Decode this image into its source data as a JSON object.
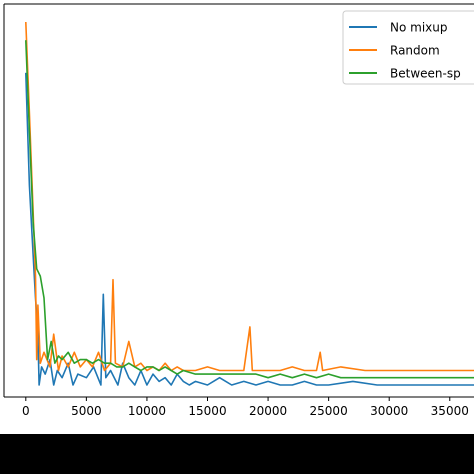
{
  "chart_data": {
    "type": "line",
    "title": "",
    "xlabel": "",
    "ylabel": "",
    "xlim": [
      -1800,
      37000
    ],
    "ylim": [
      0.0,
      1.0
    ],
    "x_ticks": [
      0,
      5000,
      10000,
      15000,
      20000,
      25000,
      30000,
      35000
    ],
    "x_tick_labels": [
      "0",
      "5000",
      "10000",
      "15000",
      "20000",
      "25000",
      "30000",
      "35000"
    ],
    "y_ticks_labeled": false,
    "grid": false,
    "legend": {
      "placement": "top-right"
    },
    "series": [
      {
        "name": "No mixup",
        "color": "#1f77b4",
        "points": [
          [
            0,
            0.86
          ],
          [
            300,
            0.55
          ],
          [
            600,
            0.36
          ],
          [
            800,
            0.24
          ],
          [
            1000,
            0.14
          ],
          [
            1100,
            0.0
          ],
          [
            1300,
            0.05
          ],
          [
            1600,
            0.03
          ],
          [
            2000,
            0.07
          ],
          [
            2300,
            0.0
          ],
          [
            2600,
            0.04
          ],
          [
            3000,
            0.02
          ],
          [
            3500,
            0.06
          ],
          [
            3900,
            0.0
          ],
          [
            4300,
            0.03
          ],
          [
            5000,
            0.02
          ],
          [
            5600,
            0.05
          ],
          [
            6200,
            0.0
          ],
          [
            6400,
            0.25
          ],
          [
            6600,
            0.02
          ],
          [
            7000,
            0.04
          ],
          [
            7600,
            0.0
          ],
          [
            8000,
            0.06
          ],
          [
            8500,
            0.02
          ],
          [
            9000,
            0.0
          ],
          [
            9500,
            0.04
          ],
          [
            10000,
            0.0
          ],
          [
            10500,
            0.03
          ],
          [
            11000,
            0.01
          ],
          [
            11500,
            0.02
          ],
          [
            12000,
            0.0
          ],
          [
            12500,
            0.03
          ],
          [
            13000,
            0.01
          ],
          [
            13500,
            0.0
          ],
          [
            14000,
            0.01
          ],
          [
            15000,
            0.0
          ],
          [
            16000,
            0.02
          ],
          [
            17000,
            0.0
          ],
          [
            18000,
            0.01
          ],
          [
            19000,
            0.0
          ],
          [
            20000,
            0.01
          ],
          [
            21000,
            0.0
          ],
          [
            22000,
            0.0
          ],
          [
            23000,
            0.01
          ],
          [
            24000,
            0.0
          ],
          [
            25000,
            0.0
          ],
          [
            27000,
            0.01
          ],
          [
            29000,
            0.0
          ],
          [
            31000,
            0.0
          ],
          [
            33000,
            0.0
          ],
          [
            35000,
            0.0
          ],
          [
            37000,
            0.0
          ]
        ]
      },
      {
        "name": "Random",
        "color": "#ff7f0e",
        "points": [
          [
            0,
            1.0
          ],
          [
            300,
            0.75
          ],
          [
            600,
            0.48
          ],
          [
            800,
            0.3
          ],
          [
            900,
            0.07
          ],
          [
            1000,
            0.22
          ],
          [
            1200,
            0.06
          ],
          [
            1500,
            0.09
          ],
          [
            2000,
            0.05
          ],
          [
            2300,
            0.14
          ],
          [
            2700,
            0.04
          ],
          [
            3000,
            0.08
          ],
          [
            3500,
            0.05
          ],
          [
            4000,
            0.09
          ],
          [
            4500,
            0.05
          ],
          [
            5000,
            0.07
          ],
          [
            5500,
            0.05
          ],
          [
            6000,
            0.09
          ],
          [
            6500,
            0.04
          ],
          [
            7000,
            0.06
          ],
          [
            7200,
            0.29
          ],
          [
            7400,
            0.06
          ],
          [
            8000,
            0.05
          ],
          [
            8500,
            0.12
          ],
          [
            9000,
            0.05
          ],
          [
            9500,
            0.06
          ],
          [
            10000,
            0.04
          ],
          [
            10500,
            0.05
          ],
          [
            11000,
            0.04
          ],
          [
            11500,
            0.06
          ],
          [
            12000,
            0.04
          ],
          [
            12500,
            0.05
          ],
          [
            13000,
            0.04
          ],
          [
            14000,
            0.04
          ],
          [
            15000,
            0.05
          ],
          [
            16000,
            0.04
          ],
          [
            17000,
            0.04
          ],
          [
            18000,
            0.04
          ],
          [
            18500,
            0.16
          ],
          [
            18700,
            0.04
          ],
          [
            20000,
            0.04
          ],
          [
            21000,
            0.04
          ],
          [
            22000,
            0.05
          ],
          [
            23000,
            0.04
          ],
          [
            24000,
            0.04
          ],
          [
            24300,
            0.09
          ],
          [
            24500,
            0.04
          ],
          [
            26000,
            0.05
          ],
          [
            28000,
            0.04
          ],
          [
            30000,
            0.04
          ],
          [
            32000,
            0.04
          ],
          [
            34000,
            0.04
          ],
          [
            36000,
            0.04
          ],
          [
            37000,
            0.04
          ]
        ]
      },
      {
        "name": "Between-sp",
        "color": "#2ca02c",
        "points": [
          [
            0,
            0.95
          ],
          [
            300,
            0.7
          ],
          [
            600,
            0.45
          ],
          [
            900,
            0.32
          ],
          [
            1200,
            0.3
          ],
          [
            1500,
            0.24
          ],
          [
            1800,
            0.07
          ],
          [
            2100,
            0.12
          ],
          [
            2400,
            0.06
          ],
          [
            2700,
            0.08
          ],
          [
            3000,
            0.07
          ],
          [
            3500,
            0.09
          ],
          [
            4000,
            0.06
          ],
          [
            4500,
            0.07
          ],
          [
            5000,
            0.07
          ],
          [
            5500,
            0.06
          ],
          [
            6000,
            0.07
          ],
          [
            6500,
            0.06
          ],
          [
            7000,
            0.06
          ],
          [
            7500,
            0.05
          ],
          [
            8000,
            0.05
          ],
          [
            8500,
            0.06
          ],
          [
            9000,
            0.05
          ],
          [
            9500,
            0.04
          ],
          [
            10000,
            0.05
          ],
          [
            10500,
            0.05
          ],
          [
            11000,
            0.04
          ],
          [
            11500,
            0.05
          ],
          [
            12000,
            0.04
          ],
          [
            12500,
            0.03
          ],
          [
            13000,
            0.04
          ],
          [
            14000,
            0.03
          ],
          [
            15000,
            0.03
          ],
          [
            16000,
            0.03
          ],
          [
            17000,
            0.03
          ],
          [
            18000,
            0.03
          ],
          [
            19000,
            0.03
          ],
          [
            20000,
            0.02
          ],
          [
            21000,
            0.03
          ],
          [
            22000,
            0.02
          ],
          [
            23000,
            0.03
          ],
          [
            24000,
            0.02
          ],
          [
            25000,
            0.03
          ],
          [
            26000,
            0.02
          ],
          [
            27000,
            0.02
          ],
          [
            28000,
            0.02
          ],
          [
            30000,
            0.02
          ],
          [
            32000,
            0.02
          ],
          [
            34000,
            0.02
          ],
          [
            36000,
            0.02
          ],
          [
            37000,
            0.02
          ]
        ]
      }
    ]
  }
}
